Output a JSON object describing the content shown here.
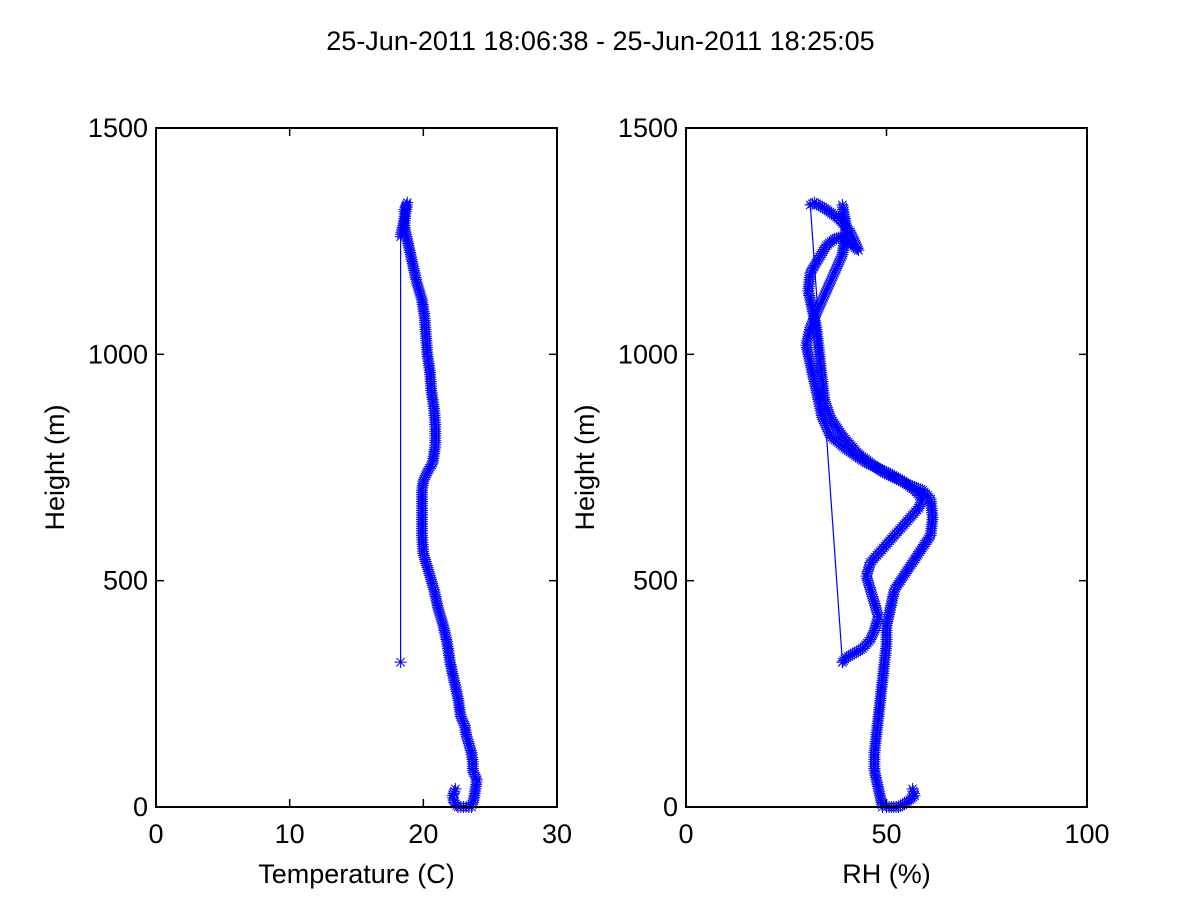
{
  "figure_title": "25-Jun-2011 18:06:38 - 25-Jun-2011 18:25:05",
  "colors": {
    "series": "#0000ff",
    "axes": "#000000"
  },
  "chart_data": [
    {
      "type": "line",
      "marker": "asterisk",
      "xlabel": "Temperature (C)",
      "ylabel": "Height (m)",
      "xlim": [
        0,
        30
      ],
      "ylim": [
        0,
        1500
      ],
      "xticks": [
        0,
        10,
        20,
        30
      ],
      "yticks": [
        0,
        500,
        1000,
        1500
      ],
      "grid": false,
      "series": [
        {
          "x": [
            23.6,
            23.8,
            23.9,
            24.0,
            23.7,
            23.7,
            23.6,
            23.4,
            23.2,
            23.1,
            22.8,
            22.6,
            22.3,
            22.0,
            21.8,
            21.5,
            21.1,
            20.8,
            20.4,
            20.0,
            19.9,
            19.9,
            19.9,
            19.9,
            20.0,
            20.3,
            20.7,
            20.9,
            20.9,
            20.8,
            20.6,
            20.5,
            20.3,
            20.2,
            20.1,
            19.9,
            19.5,
            19.2,
            18.9,
            18.6,
            18.6,
            18.8,
            18.6,
            18.3,
            18.3
          ],
          "y": [
            0,
            20,
            40,
            60,
            80,
            100,
            120,
            140,
            160,
            180,
            200,
            240,
            280,
            320,
            360,
            400,
            440,
            480,
            520,
            560,
            600,
            640,
            680,
            700,
            720,
            740,
            760,
            800,
            840,
            880,
            920,
            960,
            1000,
            1040,
            1080,
            1120,
            1160,
            1200,
            1240,
            1280,
            1320,
            1335,
            1300,
            1260,
            320
          ]
        },
        {
          "x": [
            23.4,
            23.0,
            22.6,
            22.3,
            22.2,
            22.4
          ],
          "y": [
            0,
            0,
            0,
            10,
            25,
            40
          ]
        }
      ]
    },
    {
      "type": "line",
      "marker": "asterisk",
      "xlabel": "RH (%)",
      "ylabel": "Height (m)",
      "xlim": [
        0,
        100
      ],
      "ylim": [
        0,
        1500
      ],
      "xticks": [
        0,
        50,
        100
      ],
      "yticks": [
        0,
        500,
        1000,
        1500
      ],
      "grid": false,
      "series": [
        {
          "x": [
            49,
            48,
            47,
            47,
            47.5,
            48,
            48.5,
            49,
            49.5,
            50,
            50,
            51,
            52,
            55,
            58,
            61,
            61.5,
            61,
            59,
            56,
            49,
            43,
            39,
            36,
            34.5,
            34,
            33.5,
            33,
            32.5,
            31.5,
            30.5,
            31,
            33,
            35,
            37,
            39,
            41,
            43,
            41,
            38,
            35,
            32,
            31,
            39
          ],
          "y": [
            0,
            40,
            80,
            120,
            160,
            200,
            240,
            280,
            320,
            360,
            400,
            440,
            480,
            520,
            560,
            600,
            640,
            680,
            700,
            710,
            740,
            780,
            820,
            860,
            900,
            940,
            980,
            1020,
            1060,
            1100,
            1140,
            1180,
            1210,
            1240,
            1255,
            1260,
            1245,
            1230,
            1270,
            1300,
            1320,
            1335,
            1330,
            320
          ]
        },
        {
          "x": [
            39,
            40,
            42,
            44,
            46,
            47,
            48,
            47,
            46,
            45,
            46,
            48,
            50,
            52,
            54,
            56,
            58,
            59,
            57,
            54,
            50,
            45,
            40,
            36,
            34,
            33,
            32,
            31,
            30,
            31,
            33,
            35,
            37,
            39,
            40,
            39
          ],
          "y": [
            320,
            330,
            340,
            350,
            370,
            390,
            420,
            450,
            480,
            510,
            540,
            560,
            580,
            600,
            620,
            640,
            660,
            680,
            700,
            720,
            740,
            760,
            790,
            820,
            860,
            900,
            940,
            980,
            1020,
            1060,
            1100,
            1140,
            1180,
            1220,
            1280,
            1330
          ]
        },
        {
          "x": [
            50,
            53,
            55,
            57,
            56.5
          ],
          "y": [
            0,
            0,
            10,
            25,
            40
          ]
        }
      ]
    }
  ]
}
